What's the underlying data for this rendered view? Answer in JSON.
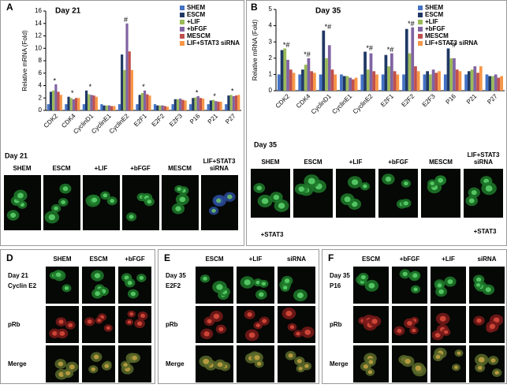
{
  "chart_data": [
    {
      "type": "bar",
      "label": "A",
      "title": "Day 21",
      "y_label": "Relative mRNA (Fold)",
      "categories": [
        "CDK2",
        "CDK4",
        "CyclinD1",
        "CyclinE1",
        "CyclinE2",
        "E2F1",
        "E2F2",
        "E2F3",
        "P16",
        "P21",
        "P27"
      ],
      "series": [
        {
          "name": "SHEM",
          "color": "#4472c4",
          "values": [
            1,
            1,
            1,
            1,
            1,
            1,
            1,
            1,
            1,
            1,
            1
          ]
        },
        {
          "name": "ESCM",
          "color": "#1f3864",
          "values": [
            3,
            2.2,
            3.2,
            0.8,
            9,
            2.5,
            0.8,
            1.8,
            2,
            1.6,
            2.4
          ]
        },
        {
          "name": "+LIF",
          "color": "#9bbb59",
          "values": [
            3.2,
            2,
            2.6,
            0.8,
            6.5,
            2.8,
            0.8,
            1.8,
            2.1,
            1.7,
            2.5
          ]
        },
        {
          "name": "+bFGF",
          "color": "#8064a2",
          "values": [
            4.2,
            1.8,
            2.5,
            0.8,
            14,
            3.2,
            0.8,
            1.9,
            2.3,
            1.5,
            2.3
          ]
        },
        {
          "name": "MESCM",
          "color": "#c0504d",
          "values": [
            3,
            2,
            2.4,
            0.7,
            9.5,
            2.6,
            0.7,
            1.7,
            2,
            1.4,
            2.4
          ]
        },
        {
          "name": "LIF+STAT3 siRNA",
          "color": "#f79646",
          "values": [
            2.5,
            2,
            2.2,
            0.7,
            6.5,
            2.4,
            0.6,
            1.6,
            1.9,
            1.4,
            2.5
          ]
        }
      ],
      "significance": [
        "*",
        "*",
        "*",
        null,
        "#",
        "*",
        null,
        null,
        "*",
        "*",
        "*"
      ],
      "ylim": [
        0,
        16
      ],
      "yticks": [
        0,
        2,
        4,
        6,
        8,
        10,
        12,
        14,
        16
      ],
      "legend": "upper right"
    },
    {
      "type": "bar",
      "label": "B",
      "title": "Day 35",
      "y_label": "Relative mRNA (Fold)",
      "categories": [
        "CDK2",
        "CDK4",
        "CyclinD1",
        "CyclinE1",
        "CyclinE2",
        "E2F1",
        "E2F2",
        "E2F3",
        "P16",
        "P21",
        "P27"
      ],
      "series": [
        {
          "name": "SHEM",
          "color": "#4472c4",
          "values": [
            1,
            1,
            1,
            1,
            1,
            1,
            1,
            1,
            1,
            1,
            1
          ]
        },
        {
          "name": "ESCM",
          "color": "#1f3864",
          "values": [
            2.5,
            1.3,
            3.7,
            0.9,
            2.4,
            2.2,
            3.8,
            1.2,
            2.6,
            1.2,
            0.9
          ]
        },
        {
          "name": "+LIF",
          "color": "#9bbb59",
          "values": [
            2.6,
            1.6,
            2,
            0.9,
            1.3,
            1.5,
            2.3,
            1,
            2,
            1.3,
            0.9
          ]
        },
        {
          "name": "+bFGF",
          "color": "#8064a2",
          "values": [
            1.9,
            2,
            2.8,
            0.8,
            2.3,
            2.3,
            3.9,
            1.3,
            2,
            1.5,
            1
          ]
        },
        {
          "name": "MESCM",
          "color": "#c0504d",
          "values": [
            1.3,
            1.2,
            1.3,
            0.7,
            1.2,
            1.2,
            1.5,
            1.1,
            1.3,
            1.1,
            0.8
          ]
        },
        {
          "name": "LIF+STAT3 siRNA",
          "color": "#f79646",
          "values": [
            1.1,
            1.1,
            1,
            0.8,
            1,
            1,
            1.2,
            1.2,
            1.2,
            1.5,
            0.9
          ]
        }
      ],
      "significance": [
        "*#",
        "*#",
        "*#",
        null,
        "*#",
        "*#",
        "*#",
        null,
        "*#",
        null,
        null
      ],
      "ylim": [
        0,
        5
      ],
      "yticks": [
        0,
        1,
        2,
        3,
        4,
        5
      ],
      "legend": "upper right"
    }
  ],
  "panel_a_images": {
    "day": "Day 21",
    "columns": [
      "SHEM",
      "ESCM",
      "+LIF",
      "+bFGF",
      "MESCM",
      [
        "LIF+STAT3",
        "siRNA"
      ]
    ]
  },
  "panel_b_images": {
    "day": "Day 35",
    "columns": [
      "SHEM",
      "ESCM",
      "+LIF",
      "+bFGF",
      "MESCM",
      [
        "LIF+STAT3",
        "siRNA"
      ]
    ],
    "footnotes": [
      "+STAT3",
      "+STAT3"
    ]
  },
  "panel_d": {
    "letter": "D",
    "day": "Day 21",
    "columns": [
      "SHEM",
      "ESCM",
      "+bFGF"
    ],
    "rows": [
      "Cyclin E2",
      "pRb",
      "Merge"
    ]
  },
  "panel_e": {
    "letter": "E",
    "day": "Day 35",
    "columns": [
      "ESCM",
      "+LIF",
      "siRNA"
    ],
    "rows": [
      "E2F2",
      "pRb",
      "Merge"
    ]
  },
  "panel_f": {
    "letter": "F",
    "day": "Day 35",
    "columns": [
      "ESCM",
      "+bFGF",
      "+LIF",
      "siRNA"
    ],
    "rows": [
      "P16",
      "pRb",
      "Merge"
    ]
  }
}
